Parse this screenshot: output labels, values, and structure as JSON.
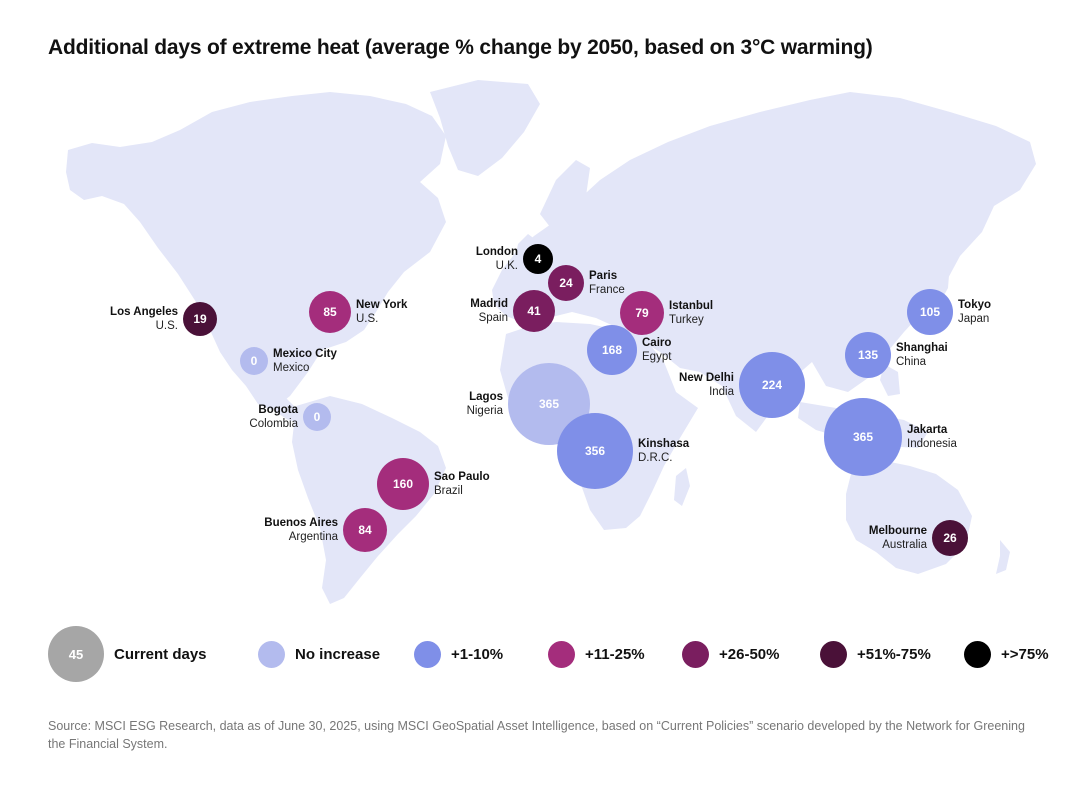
{
  "title": "Additional days of extreme heat (average % change by 2050, based on 3°C warming)",
  "colors": {
    "land": "#E3E6F8",
    "current": "#A6A6A6",
    "no_increase": "#B3BBEE",
    "plus_1_10": "#7F8FE8",
    "plus_11_25": "#A42D7C",
    "plus_26_50": "#7A1E5F",
    "plus_51_75": "#4A1138",
    "plus_75": "#000000"
  },
  "cities": [
    {
      "city": "Los Angeles",
      "country": "U.S.",
      "value": "19",
      "category": "plus_51_75"
    },
    {
      "city": "New York",
      "country": "U.S.",
      "value": "85",
      "category": "plus_11_25"
    },
    {
      "city": "Mexico City",
      "country": "Mexico",
      "value": "0",
      "category": "no_increase"
    },
    {
      "city": "Bogota",
      "country": "Colombia",
      "value": "0",
      "category": "no_increase"
    },
    {
      "city": "Sao Paulo",
      "country": "Brazil",
      "value": "160",
      "category": "plus_11_25"
    },
    {
      "city": "Buenos Aires",
      "country": "Argentina",
      "value": "84",
      "category": "plus_11_25"
    },
    {
      "city": "London",
      "country": "U.K.",
      "value": "4",
      "category": "plus_75"
    },
    {
      "city": "Paris",
      "country": "France",
      "value": "24",
      "category": "plus_26_50"
    },
    {
      "city": "Madrid",
      "country": "Spain",
      "value": "41",
      "category": "plus_26_50"
    },
    {
      "city": "Istanbul",
      "country": "Turkey",
      "value": "79",
      "category": "plus_11_25"
    },
    {
      "city": "Cairo",
      "country": "Egypt",
      "value": "168",
      "category": "plus_1_10"
    },
    {
      "city": "Lagos",
      "country": "Nigeria",
      "value": "365",
      "category": "no_increase"
    },
    {
      "city": "Kinshasa",
      "country": "D.R.C.",
      "value": "356",
      "category": "plus_1_10"
    },
    {
      "city": "New Delhi",
      "country": "India",
      "value": "224",
      "category": "plus_1_10"
    },
    {
      "city": "Tokyo",
      "country": "Japan",
      "value": "105",
      "category": "plus_1_10"
    },
    {
      "city": "Shanghai",
      "country": "China",
      "value": "135",
      "category": "plus_1_10"
    },
    {
      "city": "Jakarta",
      "country": "Indonesia",
      "value": "365",
      "category": "plus_1_10"
    },
    {
      "city": "Melbourne",
      "country": "Australia",
      "value": "26",
      "category": "plus_51_75"
    }
  ],
  "legend": {
    "current": {
      "value": "45",
      "label": "Current days"
    },
    "items": [
      {
        "label": "No increase",
        "category": "no_increase"
      },
      {
        "label": "+1-10%",
        "category": "plus_1_10"
      },
      {
        "label": "+11-25%",
        "category": "plus_11_25"
      },
      {
        "label": "+26-50%",
        "category": "plus_26_50"
      },
      {
        "label": "+51%-75%",
        "category": "plus_51_75"
      },
      {
        "label": "+>75%",
        "category": "plus_75"
      }
    ]
  },
  "source": "Source: MSCI ESG Research, data as of June 30, 2025, using MSCI GeoSpatial Asset Intelligence, based on “Current Policies” scenario developed by the Network for Greening the Financial System."
}
